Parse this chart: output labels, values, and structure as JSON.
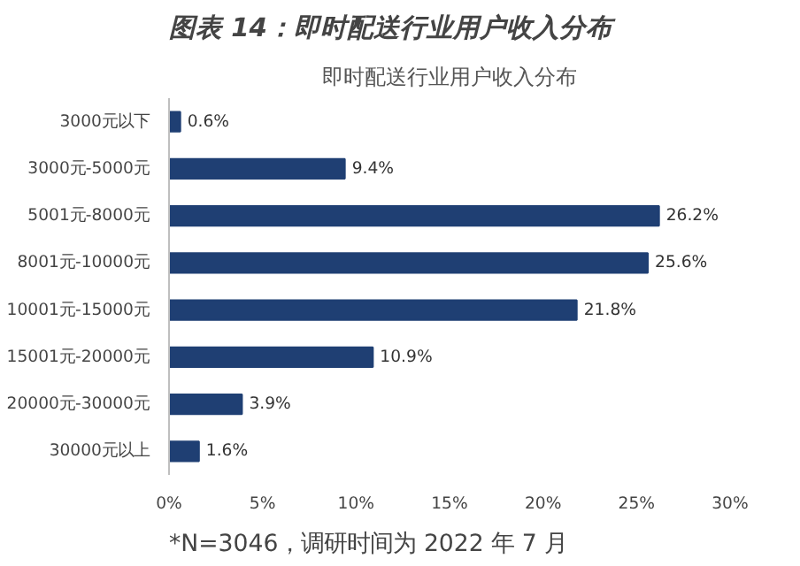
{
  "chart_data": {
    "type": "bar",
    "orientation": "horizontal",
    "title": "图表 14：即时配送行业用户收入分布",
    "subtitle": "即时配送行业用户收入分布",
    "categories": [
      "3000元以下",
      "3000元-5000元",
      "5001元-8000元",
      "8001元-10000元",
      "10001元-15000元",
      "15001元-20000元",
      "20000元-30000元",
      "30000元以上"
    ],
    "values": [
      0.6,
      9.4,
      26.2,
      25.6,
      21.8,
      10.9,
      3.9,
      1.6
    ],
    "value_labels": [
      "0.6%",
      "9.4%",
      "26.2%",
      "25.6%",
      "21.8%",
      "10.9%",
      "3.9%",
      "1.6%"
    ],
    "color": "#1f3f73",
    "xlim": [
      0,
      30
    ],
    "xticks": [
      {
        "value": 0,
        "label": "0%"
      },
      {
        "value": 5,
        "label": "5%"
      },
      {
        "value": 10,
        "label": "10%"
      },
      {
        "value": 15,
        "label": "15%"
      },
      {
        "value": 20,
        "label": "20%"
      },
      {
        "value": 25,
        "label": "25%"
      },
      {
        "value": 30,
        "label": "30%"
      }
    ],
    "grid": false,
    "annotations": [
      "*N=3046，调研时间为 2022 年 7 月"
    ]
  }
}
